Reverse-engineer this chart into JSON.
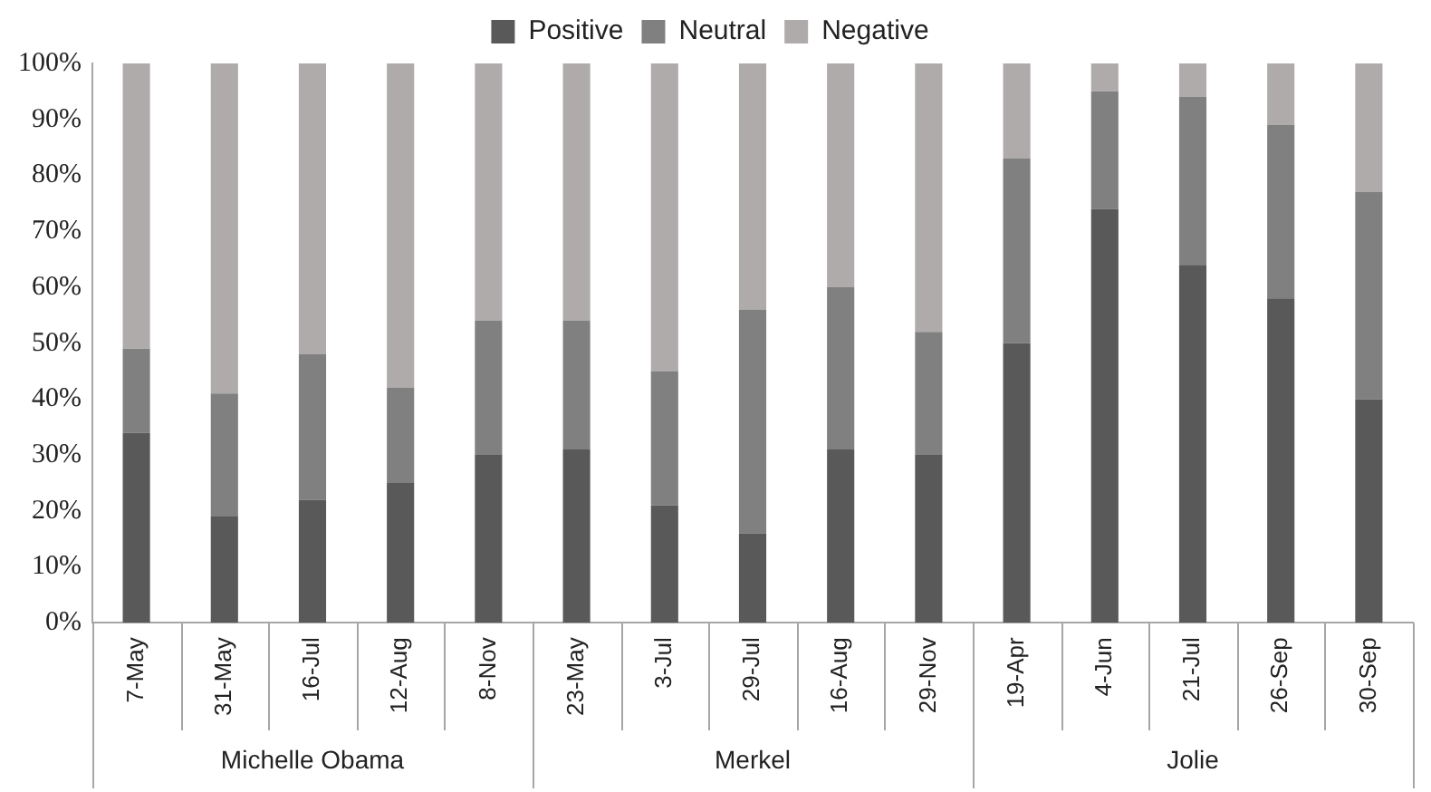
{
  "chart_data": {
    "type": "bar",
    "stacked": true,
    "categories": [
      "7-May",
      "31-May",
      "16-Jul",
      "12-Aug",
      "8-Nov",
      "23-May",
      "3-Jul",
      "29-Jul",
      "16-Aug",
      "29-Nov",
      "19-Apr",
      "4-Jun",
      "21-Jul",
      "26-Sep",
      "30-Sep"
    ],
    "series": [
      {
        "name": "Positive",
        "color": "#595959",
        "values": [
          34,
          19,
          22,
          25,
          30,
          31,
          21,
          16,
          31,
          30,
          50,
          74,
          64,
          58,
          40
        ]
      },
      {
        "name": "Neutral",
        "color": "#808080",
        "values": [
          15,
          22,
          26,
          17,
          24,
          23,
          24,
          40,
          29,
          22,
          33,
          21,
          30,
          31,
          37
        ]
      },
      {
        "name": "Negative",
        "color": "#afabab",
        "values": [
          51,
          59,
          52,
          58,
          46,
          46,
          55,
          44,
          40,
          48,
          17,
          5,
          6,
          11,
          23
        ]
      }
    ],
    "ylim": [
      0,
      100
    ],
    "yticks": [
      {
        "value": 0,
        "label": "0%"
      },
      {
        "value": 10,
        "label": "10%"
      },
      {
        "value": 20,
        "label": "20%"
      },
      {
        "value": 30,
        "label": "30%"
      },
      {
        "value": 40,
        "label": "40%"
      },
      {
        "value": 50,
        "label": "50%"
      },
      {
        "value": 60,
        "label": "60%"
      },
      {
        "value": 70,
        "label": "70%"
      },
      {
        "value": 80,
        "label": "80%"
      },
      {
        "value": 90,
        "label": "90%"
      },
      {
        "value": 100,
        "label": "100%"
      }
    ],
    "grid": false,
    "legend": "top",
    "annotations": [
      "Michelle Obama",
      "Merkel",
      "Jolie"
    ]
  }
}
